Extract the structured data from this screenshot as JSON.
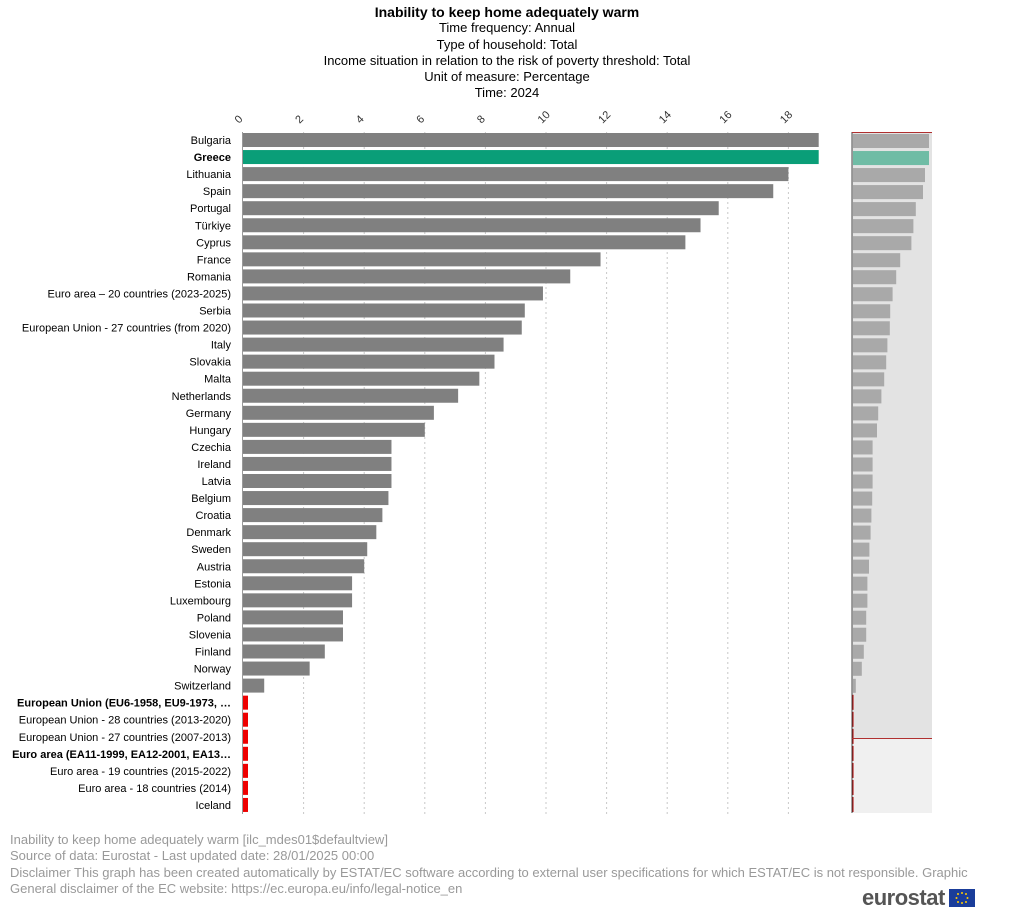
{
  "chart_data": {
    "type": "bar",
    "orientation": "horizontal",
    "title": "Inability to keep home adequately warm",
    "subtitles": [
      "Time frequency:  Annual",
      "Type of household:  Total",
      "Income situation in relation to the risk of poverty threshold:  Total",
      "Unit of measure:  Percentage",
      "Time:  2024"
    ],
    "xlim": [
      0,
      19
    ],
    "ticks": [
      0,
      2,
      4,
      6,
      8,
      10,
      12,
      14,
      16,
      18
    ],
    "grid": true,
    "highlight_color": "#0a9e78",
    "bar_color": "#808080",
    "missing_color": "#ee0000",
    "categories": [
      {
        "label": "Bulgaria",
        "value": 19.0
      },
      {
        "label": "Greece",
        "value": 19.0,
        "highlight": true,
        "bold": true
      },
      {
        "label": "Lithuania",
        "value": 18.0
      },
      {
        "label": "Spain",
        "value": 17.5
      },
      {
        "label": "Portugal",
        "value": 15.7
      },
      {
        "label": "Türkiye",
        "value": 15.1
      },
      {
        "label": "Cyprus",
        "value": 14.6
      },
      {
        "label": "France",
        "value": 11.8
      },
      {
        "label": "Romania",
        "value": 10.8
      },
      {
        "label": "Euro area – 20 countries (2023-2025)",
        "value": 9.9
      },
      {
        "label": "Serbia",
        "value": 9.3
      },
      {
        "label": "European Union - 27 countries (from 2020)",
        "value": 9.2
      },
      {
        "label": "Italy",
        "value": 8.6
      },
      {
        "label": "Slovakia",
        "value": 8.3
      },
      {
        "label": "Malta",
        "value": 7.8
      },
      {
        "label": "Netherlands",
        "value": 7.1
      },
      {
        "label": "Germany",
        "value": 6.3
      },
      {
        "label": "Hungary",
        "value": 6.0
      },
      {
        "label": "Czechia",
        "value": 4.9
      },
      {
        "label": "Ireland",
        "value": 4.9
      },
      {
        "label": "Latvia",
        "value": 4.9
      },
      {
        "label": "Belgium",
        "value": 4.8
      },
      {
        "label": "Croatia",
        "value": 4.6
      },
      {
        "label": "Denmark",
        "value": 4.4
      },
      {
        "label": "Sweden",
        "value": 4.1
      },
      {
        "label": "Austria",
        "value": 4.0
      },
      {
        "label": "Estonia",
        "value": 3.6
      },
      {
        "label": "Luxembourg",
        "value": 3.6
      },
      {
        "label": "Poland",
        "value": 3.3
      },
      {
        "label": "Slovenia",
        "value": 3.3
      },
      {
        "label": "Finland",
        "value": 2.7
      },
      {
        "label": "Norway",
        "value": 2.2
      },
      {
        "label": "Switzerland",
        "value": 0.7
      },
      {
        "label": "European Union (EU6-1958, EU9-1973, …",
        "value": null,
        "bold": true
      },
      {
        "label": "European Union - 28 countries (2013-2020)",
        "value": null
      },
      {
        "label": "European Union - 27 countries (2007-2013)",
        "value": null
      },
      {
        "label": "Euro area (EA11-1999, EA12-2001, EA13…",
        "value": null,
        "bold": true
      },
      {
        "label": "Euro area - 19 countries  (2015-2022)",
        "value": null
      },
      {
        "label": "Euro area - 18 countries (2014)",
        "value": null
      },
      {
        "label": "Iceland",
        "value": null
      }
    ]
  },
  "footer": {
    "line1": "Inability to keep home adequately warm [ilc_mdes01$defaultview]",
    "line2": "Source of data: Eurostat - Last updated date: 28/01/2025 00:00",
    "line3": "Disclaimer This graph has been created automatically by ESTAT/EC software according to external user specifications for which ESTAT/EC is not responsible. Graphic",
    "line4": "General disclaimer of the EC website: https://ec.europa.eu/info/legal-notice_en"
  },
  "logo": {
    "text": "eurostat"
  }
}
